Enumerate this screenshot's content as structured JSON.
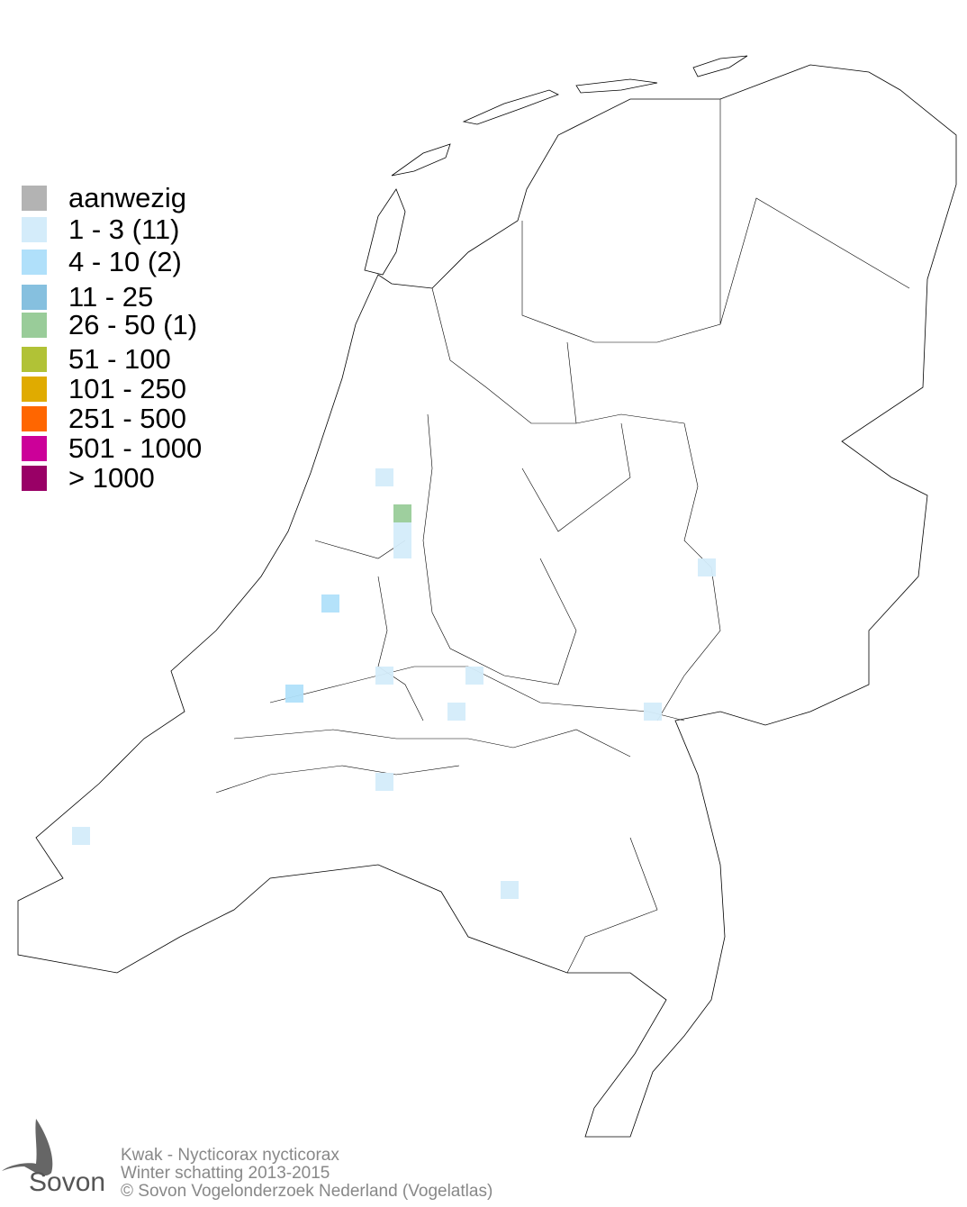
{
  "legend": {
    "items": [
      {
        "label": "aanwezig",
        "color": "#b3b3b3"
      },
      {
        "label": "1 - 3 (11)",
        "color": "#d4ecfa"
      },
      {
        "label": "4 - 10 (2)",
        "color": "#b0e0fa"
      },
      {
        "label": "11 - 25",
        "color": "#86c0df"
      },
      {
        "label": "26 - 50 (1)",
        "color": "#99cc99"
      },
      {
        "label": "51 - 100",
        "color": "#b1c236"
      },
      {
        "label": "101 - 250",
        "color": "#e0ab00"
      },
      {
        "label": "251 - 500",
        "color": "#ff6600"
      },
      {
        "label": "501 - 1000",
        "color": "#cc0099"
      },
      {
        "label": "> 1000",
        "color": "#990066"
      }
    ]
  },
  "map": {
    "cells": [
      {
        "class": 1
      },
      {
        "class": 4
      },
      {
        "class": 1
      },
      {
        "class": 1
      },
      {
        "class": 2
      },
      {
        "class": 1
      },
      {
        "class": 1
      },
      {
        "class": 1
      },
      {
        "class": 2
      },
      {
        "class": 1
      },
      {
        "class": 1
      },
      {
        "class": 1
      },
      {
        "class": 1
      },
      {
        "class": 1
      }
    ]
  },
  "footer": {
    "species": "Kwak - Nycticorax nycticorax",
    "period": "Winter schatting 2013-2015",
    "copyright": "© Sovon Vogelonderzoek Nederland (Vogelatlas)"
  },
  "logo": {
    "text": "Sovon"
  }
}
